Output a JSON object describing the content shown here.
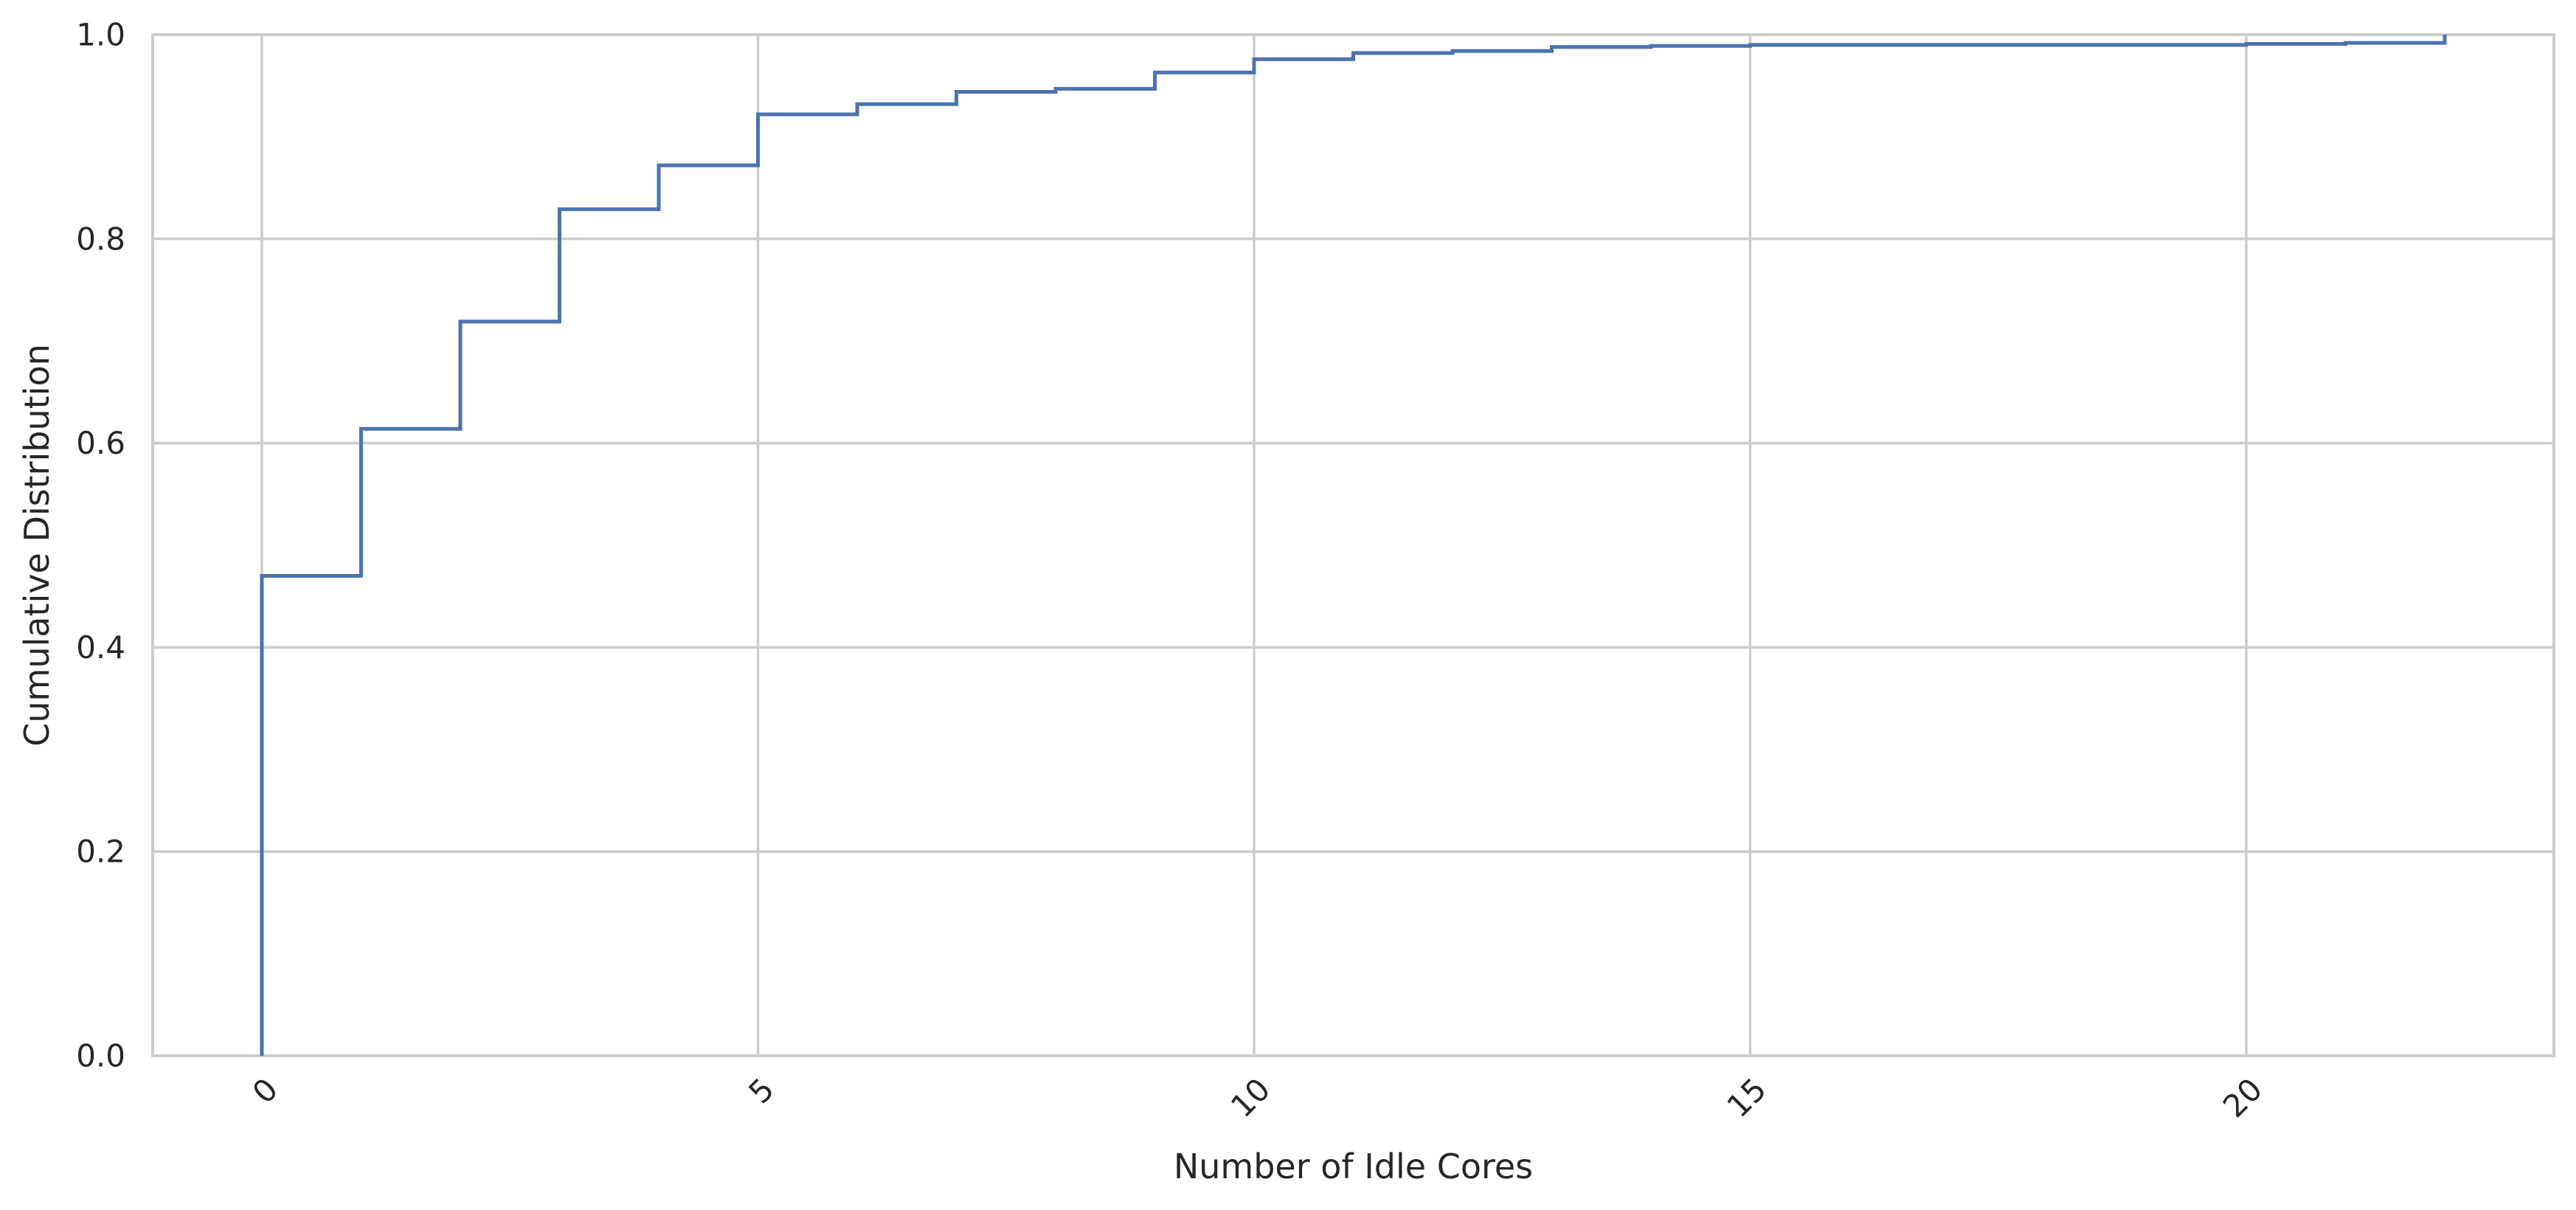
{
  "chart_data": {
    "type": "line",
    "style": "step-post",
    "title": "",
    "xlabel": "Number of Idle Cores",
    "ylabel": "Cumulative Distribution",
    "xlim": [
      -1.1,
      23.1
    ],
    "ylim": [
      0.0,
      1.0
    ],
    "xticks": [
      0,
      5,
      10,
      15,
      20
    ],
    "xtick_labels": [
      "0",
      "5",
      "10",
      "15",
      "20"
    ],
    "xtick_rotation": 45,
    "yticks": [
      0.0,
      0.2,
      0.4,
      0.6,
      0.8,
      1.0
    ],
    "ytick_labels": [
      "0.0",
      "0.2",
      "0.4",
      "0.6",
      "0.8",
      "1.0"
    ],
    "grid": true,
    "legend": "none",
    "colors": {
      "line": "#4c72b0",
      "grid": "#cccccc",
      "spine": "#cccccc",
      "text": "#262626"
    },
    "series": [
      {
        "x": [
          0,
          0,
          1,
          2,
          3,
          4,
          5,
          6,
          7,
          8,
          9,
          10,
          11,
          12,
          13,
          14,
          15,
          16,
          17,
          18,
          19,
          20,
          21,
          22
        ],
        "y": [
          0.0,
          0.47,
          0.614,
          0.719,
          0.829,
          0.872,
          0.922,
          0.932,
          0.944,
          0.947,
          0.963,
          0.976,
          0.982,
          0.984,
          0.988,
          0.989,
          0.99,
          0.99,
          0.99,
          0.99,
          0.99,
          0.991,
          0.992,
          1.0
        ]
      }
    ]
  }
}
